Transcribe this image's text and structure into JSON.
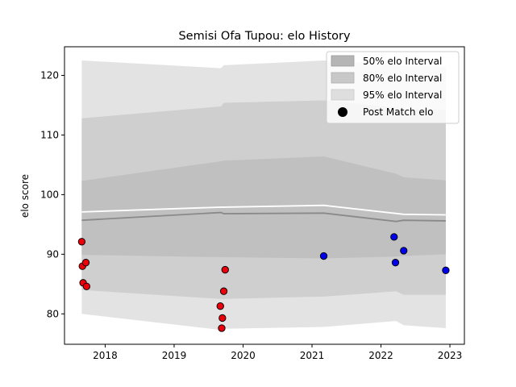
{
  "chart_data": {
    "type": "scatter",
    "title": "Semisi Ofa Tupou: elo History",
    "xlabel": "",
    "ylabel": "elo score",
    "x_ticks": [
      2018,
      2019,
      2020,
      2021,
      2022,
      2023
    ],
    "y_ticks": [
      80,
      90,
      100,
      110,
      120
    ],
    "xlim": [
      2017.41,
      2023.21
    ],
    "ylim": [
      74.9,
      124.8
    ],
    "legend": {
      "placement": "top-right",
      "entries": [
        "50% elo Interval",
        "80% elo Interval",
        "95% elo Interval",
        "Post Match elo"
      ]
    },
    "bands": {
      "x": [
        2017.66,
        2019.68,
        2019.72,
        2021.17,
        2022.22,
        2022.33,
        2022.94
      ],
      "p95_hi": [
        122.5,
        121.2,
        121.7,
        122.5,
        121.8,
        121.6,
        121.5
      ],
      "p80_hi": [
        112.8,
        114.8,
        115.4,
        115.8,
        114.6,
        114.4,
        114.2
      ],
      "p50_hi": [
        102.3,
        105.6,
        105.7,
        106.4,
        103.5,
        102.9,
        102.4
      ],
      "p50_lo": [
        89.9,
        89.5,
        89.5,
        89.3,
        89.6,
        89.7,
        90.0
      ],
      "p80_lo": [
        84.0,
        82.5,
        82.5,
        82.9,
        83.8,
        83.2,
        83.2
      ],
      "p95_lo": [
        80.0,
        77.3,
        77.5,
        77.8,
        78.8,
        78.1,
        77.6
      ]
    },
    "median_line": {
      "x": [
        2017.66,
        2019.68,
        2019.72,
        2021.17,
        2022.22,
        2022.33,
        2022.94
      ],
      "y": [
        95.7,
        97.0,
        96.8,
        96.9,
        95.5,
        95.7,
        95.6
      ]
    },
    "mean_line": {
      "x": [
        2017.66,
        2019.68,
        2019.72,
        2021.17,
        2022.33,
        2022.94
      ],
      "y": [
        97.1,
        97.9,
        97.9,
        98.2,
        96.7,
        96.6
      ]
    },
    "points": [
      {
        "x": 2017.66,
        "y": 92.1,
        "color": "#e8000b"
      },
      {
        "x": 2017.67,
        "y": 88.0,
        "color": "#e8000b"
      },
      {
        "x": 2017.72,
        "y": 88.6,
        "color": "#e8000b"
      },
      {
        "x": 2017.68,
        "y": 85.2,
        "color": "#e8000b"
      },
      {
        "x": 2017.73,
        "y": 84.6,
        "color": "#e8000b"
      },
      {
        "x": 2019.67,
        "y": 81.3,
        "color": "#e8000b"
      },
      {
        "x": 2019.7,
        "y": 79.3,
        "color": "#e8000b"
      },
      {
        "x": 2019.69,
        "y": 77.6,
        "color": "#e8000b"
      },
      {
        "x": 2019.72,
        "y": 83.8,
        "color": "#e8000b"
      },
      {
        "x": 2019.74,
        "y": 87.4,
        "color": "#e8000b"
      },
      {
        "x": 2021.17,
        "y": 89.7,
        "color": "#0000e8"
      },
      {
        "x": 2022.19,
        "y": 92.9,
        "color": "#0000e8"
      },
      {
        "x": 2022.21,
        "y": 88.6,
        "color": "#0000e8"
      },
      {
        "x": 2022.33,
        "y": 90.6,
        "color": "#0000e8"
      },
      {
        "x": 2022.94,
        "y": 87.3,
        "color": "#0000e8"
      }
    ],
    "colors": {
      "band95": "#e3e3e3",
      "band80": "#cfcfcf",
      "band50": "#c0c0c0",
      "median": "#8a8a8a",
      "mean": "#ffffff",
      "legend50": "#b5b5b5",
      "legend80": "#c8c8c8",
      "legend95": "#dedede"
    }
  }
}
